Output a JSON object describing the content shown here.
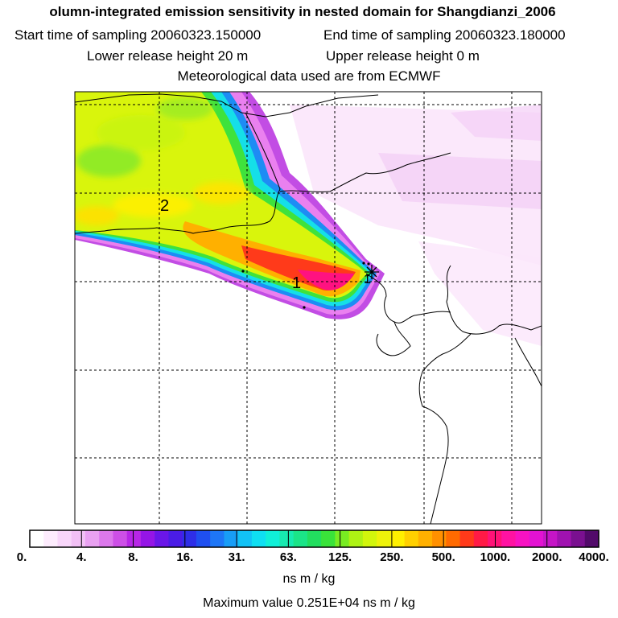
{
  "header": {
    "title": "olumn-integrated emission sensitivity in nested domain for Shangdianzi_2006",
    "start_time": "Start time of sampling 20060323.150000",
    "end_time": "End time of sampling 20060323.180000",
    "lower_height": "Lower release height   20 m",
    "upper_height": "Upper release height    0 m",
    "met_data": "Meteorological data used are from ECMWF"
  },
  "map": {
    "markers": [
      {
        "label": "2"
      },
      {
        "label": "1"
      }
    ]
  },
  "colorbar": {
    "tick_labels": [
      "0.",
      "4.",
      "8.",
      "16.",
      "31.",
      "63.",
      "125.",
      "250.",
      "500.",
      "1000.",
      "2000.",
      "4000."
    ],
    "colors": [
      "#ffffff",
      "#fdecfd",
      "#f8d6fa",
      "#f2c0f5",
      "#e9a1f1",
      "#dc78ec",
      "#cd4fe7",
      "#b726e6",
      "#9515e6",
      "#6a16e8",
      "#4a1ce6",
      "#2e2ee8",
      "#1f4ff0",
      "#1e76f6",
      "#189df6",
      "#12c2f5",
      "#0fdff2",
      "#10f0d8",
      "#17eab0",
      "#1be488",
      "#22de5f",
      "#3ae33a",
      "#78ec22",
      "#aef214",
      "#d2f60c",
      "#eef20a",
      "#fff000",
      "#ffd000",
      "#ffb000",
      "#ff9000",
      "#ff6a00",
      "#ff3a1a",
      "#ff1a46",
      "#ff1277",
      "#ff12a2",
      "#f812c2",
      "#e312d2",
      "#c515c6",
      "#a012b0",
      "#7a1090",
      "#520a6a"
    ],
    "units": "ns m / kg"
  },
  "footer": {
    "max_value": "Maximum value  0.251E+04 ns m / kg"
  }
}
